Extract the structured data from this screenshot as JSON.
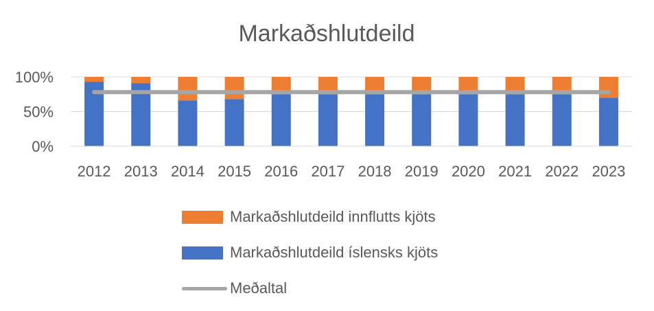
{
  "chart_data": {
    "type": "bar",
    "stacked": true,
    "title": "Markaðshlutdeild",
    "categories": [
      "2012",
      "2013",
      "2014",
      "2015",
      "2016",
      "2017",
      "2018",
      "2019",
      "2020",
      "2021",
      "2022",
      "2023"
    ],
    "series": [
      {
        "name": "Markaðshlutdeild íslensks kjöts",
        "kind": "bar",
        "values": [
          93,
          91,
          66,
          68,
          75,
          75,
          75,
          75,
          75,
          75,
          75,
          70
        ],
        "color": "#4472C4"
      },
      {
        "name": "Markaðshlutdeild innflutts kjöts",
        "kind": "bar",
        "values": [
          7,
          9,
          34,
          32,
          25,
          25,
          25,
          25,
          25,
          25,
          25,
          30
        ],
        "color": "#ED7D31"
      },
      {
        "name": "Meðaltal",
        "kind": "line",
        "values": [
          78,
          78,
          78,
          78,
          78,
          78,
          78,
          78,
          78,
          78,
          78,
          78
        ],
        "color": "#A5A5A5"
      }
    ],
    "yticks": [
      "0%",
      "50%",
      "100%"
    ],
    "ylim": [
      0,
      100
    ],
    "grid": true,
    "legend_position": "bottom"
  }
}
